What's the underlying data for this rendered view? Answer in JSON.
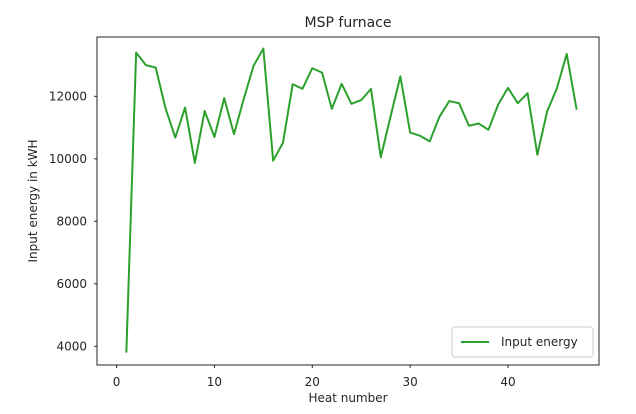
{
  "chart_data": {
    "type": "line",
    "title": "MSP furnace",
    "xlabel": "Heat number",
    "ylabel": "Input energy in kWH",
    "xlim": [
      -2,
      49.3
    ],
    "ylim": [
      3400,
      13900
    ],
    "xticks": [
      0,
      10,
      20,
      30,
      40
    ],
    "yticks": [
      4000,
      6000,
      8000,
      10000,
      12000
    ],
    "grid": false,
    "legend_position": "lower-right",
    "series": [
      {
        "name": "Input energy",
        "color": "#2ca02c",
        "x": [
          1,
          2,
          3,
          4,
          5,
          6,
          7,
          8,
          9,
          10,
          11,
          12,
          13,
          14,
          15,
          16,
          17,
          18,
          19,
          20,
          21,
          22,
          23,
          24,
          25,
          26,
          27,
          28,
          29,
          30,
          31,
          32,
          33,
          34,
          35,
          36,
          37,
          38,
          39,
          40,
          41,
          42,
          43,
          44,
          45,
          46,
          47
        ],
        "values": [
          3820,
          13400,
          13000,
          12920,
          11620,
          10680,
          11640,
          9870,
          11530,
          10700,
          11940,
          10790,
          11920,
          12980,
          13530,
          9940,
          10510,
          12390,
          12240,
          12900,
          12760,
          11600,
          12400,
          11760,
          11880,
          12240,
          10050,
          11360,
          12640,
          10840,
          10740,
          10560,
          11350,
          11850,
          11780,
          11060,
          11130,
          10930,
          11740,
          12270,
          11780,
          12100,
          10130,
          11520,
          12260,
          13360,
          11600
        ]
      }
    ]
  }
}
